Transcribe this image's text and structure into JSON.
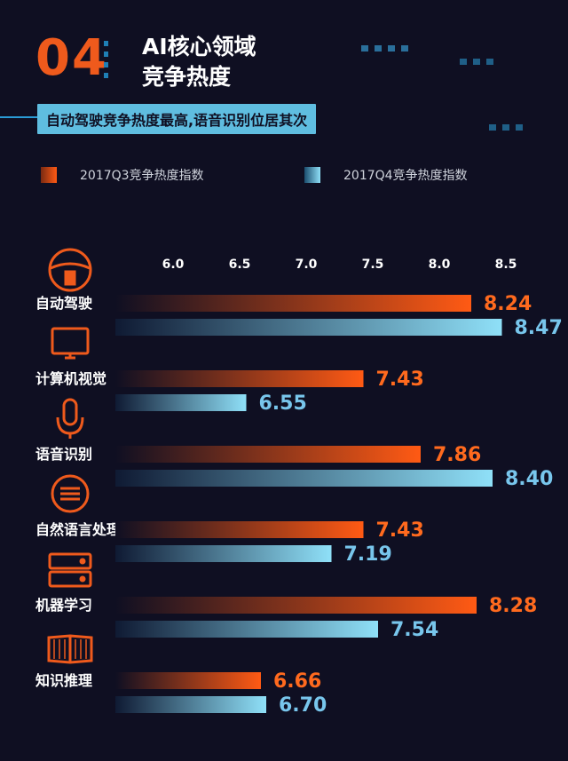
{
  "header": {
    "number": "04",
    "title_line1": "AI核心领域",
    "title_line2": "竞争热度",
    "subtitle": "自动驾驶竞争热度最高,语音识别位居其次"
  },
  "colors": {
    "q3_start": "#2a1a2a",
    "q3_end": "#ff5a14",
    "q4_start": "#112038",
    "q4_end": "#8fe0f8",
    "q3_label": "#ff6a1e",
    "q4_label": "#78c6ec",
    "accent_blue": "#1f7fb5"
  },
  "icons": [
    "steering-wheel-icon",
    "monitor-icon",
    "microphone-icon",
    "text-lines-icon",
    "server-icon",
    "open-book-icon"
  ],
  "chart_data": {
    "type": "bar",
    "orientation": "horizontal",
    "categories": [
      "自动驾驶",
      "计算机视觉",
      "语音识别",
      "自然语言处理",
      "机器学习",
      "知识推理"
    ],
    "series": [
      {
        "name": "2017Q3竞争热度指数",
        "values": [
          8.24,
          7.43,
          7.86,
          7.43,
          8.28,
          6.66
        ],
        "labels": [
          "8.24",
          "7.43",
          "7.86",
          "7.43",
          "8.28",
          "6.66"
        ]
      },
      {
        "name": "2017Q4竞争热度指数",
        "values": [
          8.47,
          6.55,
          8.4,
          7.19,
          7.54,
          6.7
        ],
        "labels": [
          "8.47",
          "6.55",
          "8.40",
          "7.19",
          "7.54",
          "6.70"
        ]
      }
    ],
    "ticks": [
      "6.0",
      "6.5",
      "7.0",
      "7.5",
      "8.0",
      "8.5"
    ],
    "xlim": [
      5.0,
      8.5
    ],
    "legend": "top"
  }
}
